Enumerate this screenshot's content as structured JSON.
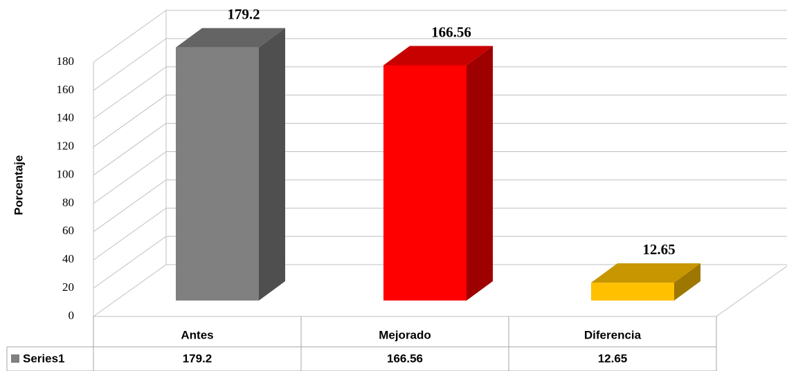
{
  "chart_data": {
    "type": "bar3d",
    "y_label": "Porcentaje",
    "categories": [
      "Antes",
      "Mejorado",
      "Diferencia"
    ],
    "series": [
      {
        "name": "Series1",
        "color": "#808080",
        "colors": [
          "#808080",
          "#ff0000",
          "#ffc000"
        ],
        "values": [
          179.2,
          166.56,
          12.65
        ]
      }
    ],
    "ylim": [
      0,
      180
    ],
    "yticks": [
      0,
      20,
      40,
      60,
      80,
      100,
      120,
      140,
      160,
      180
    ],
    "grid": true
  }
}
